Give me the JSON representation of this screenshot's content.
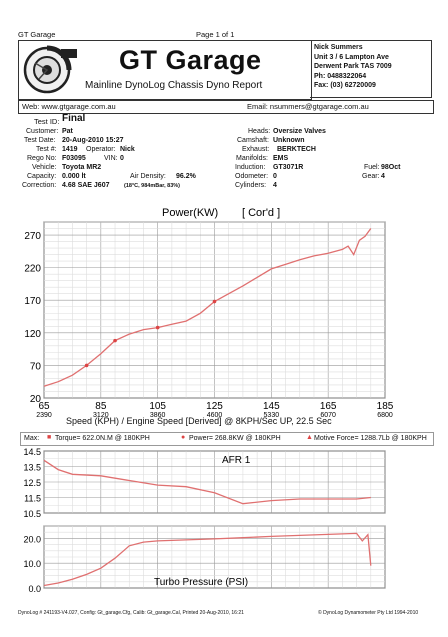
{
  "page": {
    "header_left": "GT Garage",
    "header_center": "Page 1 of 1"
  },
  "logo": {
    "title": "GT Garage",
    "subtitle": "Mainline DynoLog Chassis Dyno Report"
  },
  "contact": {
    "lines": [
      "Nick Summers",
      "Unit 3 / 6 Lampton Ave",
      "Derwent Park TAS 7009",
      "Ph: 0488322064",
      "Fax: (03) 62720009"
    ]
  },
  "web": {
    "label": "Web: www.gtgarage.com.au",
    "email": "Email: nsummers@gtgarage.com.au"
  },
  "test": {
    "test_id_label": "Test ID:",
    "test_id": "Final",
    "customer_label": "Customer:",
    "customer": "Pat",
    "date_label": "Test Date:",
    "date": "20-Aug-2010 15:27",
    "testno_label": "Test #:",
    "testno": "1419",
    "operator_label": "Operator:",
    "operator": "Nick",
    "rego_label": "Rego No:",
    "rego": "F03095",
    "vin_label": "VIN:",
    "vin": "0",
    "vehicle_label": "Vehicle:",
    "vehicle": "Toyota MR2",
    "capacity_label": "Capacity:",
    "capacity": "0.000 lt",
    "air_label": "Air Density:",
    "air": "96.2%",
    "air_note": "(18°C, 984mBar, 83%)",
    "correction_label": "Correction:",
    "correction": "4.68 SAE J607",
    "heads_label": "Heads:",
    "heads": "Oversize Valves",
    "cam_label": "Camshaft:",
    "cam": "Unknown",
    "exhaust_label": "Exhaust:",
    "exhaust": "BERKTECH",
    "manifolds_label": "Manifolds:",
    "manifolds": "EMS",
    "induction_label": "Induction:",
    "induction": "GT3071R",
    "odometer_label": "Odometer:",
    "odometer": "0",
    "cylinders_label": "Cylinders:",
    "cylinders": "4",
    "fuel_label": "Fuel:",
    "fuel": "98Oct",
    "gear_label": "Gear:",
    "gear": "4"
  },
  "power_chart": {
    "title": "Power(KW)",
    "title2": "[ Cor'd ]",
    "xlabel": "Speed (KPH) / Engine Speed [Derived] @ 8KPH/Sec UP, 22.5 Sec",
    "y_ticks": [
      "270",
      "220",
      "170",
      "120",
      "70",
      "20"
    ],
    "x_ticks": [
      "65",
      "85",
      "105",
      "125",
      "145",
      "165",
      "185"
    ],
    "rpm_ticks": [
      "2390",
      "3120",
      "3860",
      "4600",
      "5330",
      "6070",
      "6800"
    ]
  },
  "max_row": {
    "label": "Max:",
    "torque": "Torque= 622.0N.M @ 180KPH",
    "power": "Power= 268.8KW @ 180KPH",
    "force": "Motive Force= 1288.7Lb @ 180KPH"
  },
  "afr_chart": {
    "title": "AFR 1",
    "y_ticks": [
      "14.5",
      "13.5",
      "12.5",
      "11.5",
      "10.5"
    ]
  },
  "boost_chart": {
    "title": "Turbo Pressure (PSI)",
    "y_ticks": [
      "20.0",
      "10.0",
      "0.0"
    ]
  },
  "footer": {
    "left": "DynoLog # 241193-V4.027, Config: Gt_garage.Cfg, Calib: Gt_garage.Cal, Printed 20-Aug-2010, 16:21",
    "right": "© DynoLog Dynamometer Pty Ltd 1994-2010"
  },
  "chart_data": [
    {
      "type": "line",
      "title": "Power(KW) [ Cor'd ]",
      "xlabel": "Speed (KPH) / Engine Speed [Derived] @ 8KPH/Sec UP, 22.5 Sec",
      "ylabel": "",
      "xlim": [
        65,
        185
      ],
      "ylim": [
        20,
        290
      ],
      "series": [
        {
          "name": "Power",
          "x": [
            65,
            70,
            75,
            80,
            85,
            90,
            95,
            100,
            105,
            110,
            115,
            120,
            125,
            130,
            135,
            140,
            145,
            150,
            155,
            160,
            165,
            170,
            172,
            174,
            176,
            178,
            180
          ],
          "y": [
            38,
            45,
            55,
            70,
            88,
            108,
            118,
            125,
            128,
            133,
            138,
            150,
            168,
            180,
            192,
            205,
            218,
            225,
            232,
            238,
            242,
            248,
            253,
            240,
            262,
            268,
            280
          ]
        }
      ],
      "grid": true
    },
    {
      "type": "line",
      "title": "AFR 1",
      "xlim": [
        65,
        185
      ],
      "ylim": [
        10.5,
        14.5
      ],
      "series": [
        {
          "name": "AFR 1",
          "x": [
            65,
            70,
            75,
            85,
            95,
            105,
            115,
            125,
            135,
            145,
            155,
            165,
            175,
            180
          ],
          "y": [
            13.9,
            13.3,
            13.0,
            12.9,
            12.6,
            12.3,
            12.2,
            11.8,
            11.1,
            11.3,
            11.4,
            11.4,
            11.4,
            11.5
          ]
        }
      ],
      "grid": true
    },
    {
      "type": "line",
      "title": "Turbo Pressure (PSI)",
      "xlim": [
        65,
        185
      ],
      "ylim": [
        0,
        25
      ],
      "series": [
        {
          "name": "Turbo Pressure",
          "x": [
            65,
            70,
            75,
            80,
            85,
            90,
            95,
            100,
            105,
            115,
            125,
            135,
            145,
            155,
            165,
            170,
            175,
            177,
            179,
            180
          ],
          "y": [
            1.0,
            2.0,
            3.5,
            5.5,
            8.0,
            12.0,
            17.0,
            18.5,
            19.0,
            19.4,
            19.8,
            20.3,
            20.8,
            21.2,
            21.6,
            21.8,
            22.0,
            19.0,
            21.5,
            9.0
          ]
        }
      ],
      "grid": true
    }
  ]
}
